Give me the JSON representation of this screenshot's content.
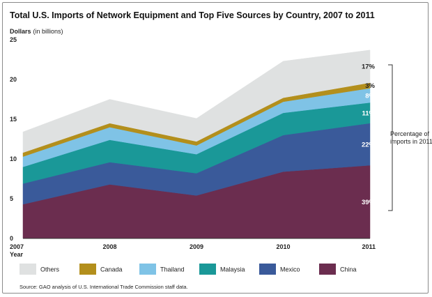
{
  "chart_data": {
    "type": "area",
    "stacked": true,
    "title": "Total U.S. Imports of Network Equipment and Top Five Sources by Country, 2007 to 2011",
    "ylabel_bold": "Dollars",
    "ylabel_unit": "(in billions)",
    "xlabel": "Year",
    "x": [
      "2007",
      "2008",
      "2009",
      "2010",
      "2011"
    ],
    "ylim": [
      0,
      25
    ],
    "yticks": [
      0,
      5,
      10,
      15,
      20,
      25
    ],
    "series": [
      {
        "name": "China",
        "color": "#6b2d4f",
        "values": [
          4.3,
          6.8,
          5.4,
          8.4,
          9.2
        ],
        "pct_label": "39%",
        "pct_color": "#ffffff"
      },
      {
        "name": "Mexico",
        "color": "#3a5a9a",
        "values": [
          2.6,
          2.8,
          2.8,
          4.6,
          5.3
        ],
        "pct_label": "22%",
        "pct_color": "#ffffff"
      },
      {
        "name": "Malaysia",
        "color": "#1a9898",
        "values": [
          2.1,
          2.8,
          2.4,
          2.8,
          2.6
        ],
        "pct_label": "11%",
        "pct_color": "#ffffff"
      },
      {
        "name": "Thailand",
        "color": "#7fc3e6",
        "values": [
          1.3,
          1.6,
          1.1,
          1.4,
          1.8
        ],
        "pct_label": "8%",
        "pct_color": "#ffffff"
      },
      {
        "name": "Canada",
        "color": "#b38f1c",
        "values": [
          0.5,
          0.5,
          0.5,
          0.5,
          0.7
        ],
        "pct_label": "3%",
        "pct_color": "#222222"
      },
      {
        "name": "Others",
        "color": "#dfe1e1",
        "values": [
          2.6,
          3.0,
          2.9,
          4.6,
          4.1
        ],
        "pct_label": "17%",
        "pct_color": "#222222"
      }
    ],
    "annotation": {
      "line1": "Percentage of",
      "line2": "imports in 2011"
    },
    "legend_order": [
      "Others",
      "Canada",
      "Thailand",
      "Malaysia",
      "Mexico",
      "China"
    ],
    "legend_position": "bottom",
    "grid": false
  },
  "source": "Source: GAO analysis of U.S. International Trade Commission staff data."
}
